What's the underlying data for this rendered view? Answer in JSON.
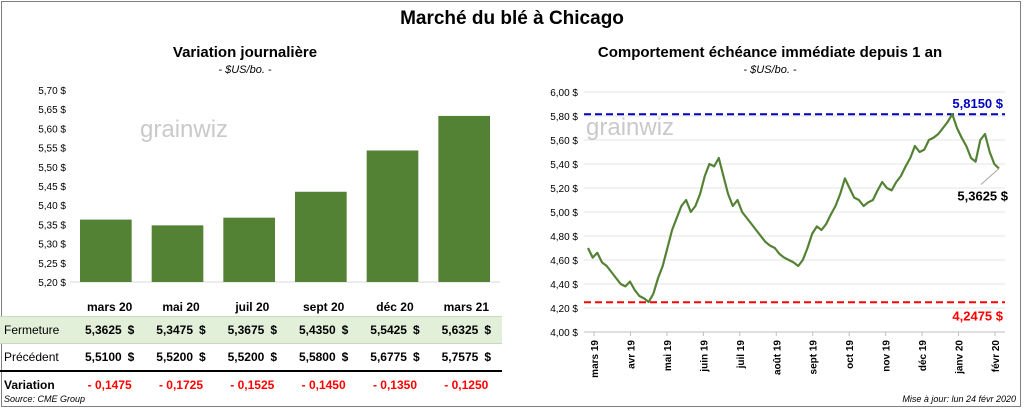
{
  "title": "Marché du blé à Chicago",
  "left_chart": {
    "title": "Variation journalière",
    "unit": "- $US/bo. -",
    "watermark": "grainwiz"
  },
  "right_chart": {
    "title": "Comportement échéance immédiate depuis 1 an",
    "unit": "- $US/bo. -",
    "watermark": "grainwiz",
    "high_label": "5,8150 $",
    "low_label": "4,2475 $",
    "last_label": "5,3625 $"
  },
  "table": {
    "rows": [
      {
        "label": "Fermeture",
        "values": [
          "5,3625",
          "5,3475",
          "5,3675",
          "5,4350",
          "5,5425",
          "5,6325"
        ],
        "suffix": "$"
      },
      {
        "label": "Précédent",
        "values": [
          "5,5100",
          "5,5200",
          "5,5200",
          "5,5800",
          "5,6775",
          "5,7575"
        ],
        "suffix": "$"
      },
      {
        "label": "Variation",
        "values": [
          "- 0,1475",
          "- 0,1725",
          "- 0,1525",
          "- 0,1450",
          "- 0,1350",
          "- 0,1250"
        ],
        "suffix": ""
      }
    ]
  },
  "footer": {
    "source": "Source: CME Group",
    "updated": "Mise à jour: lun 24 févr 2020"
  },
  "colors": {
    "bar": "#548235",
    "line": "#548235",
    "high": "#0000c0",
    "low": "#ff0000",
    "negative": "#ff0000"
  },
  "chart_data": [
    {
      "type": "bar",
      "title": "Variation journalière",
      "categories": [
        "mars 20",
        "mai 20",
        "juil 20",
        "sept 20",
        "déc 20",
        "mars 21"
      ],
      "values": [
        5.3625,
        5.3475,
        5.3675,
        5.435,
        5.5425,
        5.6325
      ],
      "ylim": [
        5.2,
        5.7
      ],
      "yticks": [
        "5,20 $",
        "5,25 $",
        "5,30 $",
        "5,35 $",
        "5,40 $",
        "5,45 $",
        "5,50 $",
        "5,55 $",
        "5,60 $",
        "5,65 $",
        "5,70 $"
      ]
    },
    {
      "type": "line",
      "title": "Comportement échéance immédiate depuis 1 an",
      "ylim": [
        4.0,
        6.0
      ],
      "yticks": [
        "4,00 $",
        "4,20 $",
        "4,40 $",
        "4,60 $",
        "4,80 $",
        "5,00 $",
        "5,20 $",
        "5,40 $",
        "5,60 $",
        "5,80 $",
        "6,00 $"
      ],
      "xticks": [
        "mars 19",
        "avr 19",
        "mai 19",
        "juin 19",
        "juil 19",
        "août 19",
        "sept 19",
        "oct 19",
        "nov 19",
        "déc 19",
        "janv 20",
        "févr 20"
      ],
      "high": 5.815,
      "low": 4.2475,
      "last": 5.3625,
      "values": [
        4.7,
        4.62,
        4.66,
        4.58,
        4.55,
        4.5,
        4.45,
        4.4,
        4.38,
        4.42,
        4.35,
        4.3,
        4.28,
        4.25,
        4.32,
        4.45,
        4.55,
        4.7,
        4.85,
        4.95,
        5.05,
        5.1,
        5.0,
        5.05,
        5.15,
        5.3,
        5.4,
        5.38,
        5.45,
        5.3,
        5.15,
        5.05,
        5.1,
        5.0,
        4.95,
        4.9,
        4.85,
        4.8,
        4.75,
        4.72,
        4.7,
        4.65,
        4.62,
        4.6,
        4.58,
        4.55,
        4.6,
        4.7,
        4.82,
        4.88,
        4.85,
        4.9,
        4.98,
        5.05,
        5.15,
        5.28,
        5.2,
        5.12,
        5.1,
        5.05,
        5.08,
        5.1,
        5.18,
        5.25,
        5.2,
        5.18,
        5.25,
        5.3,
        5.38,
        5.45,
        5.55,
        5.5,
        5.52,
        5.6,
        5.62,
        5.65,
        5.7,
        5.75,
        5.815,
        5.7,
        5.62,
        5.55,
        5.45,
        5.42,
        5.6,
        5.65,
        5.5,
        5.4,
        5.3625
      ]
    }
  ]
}
